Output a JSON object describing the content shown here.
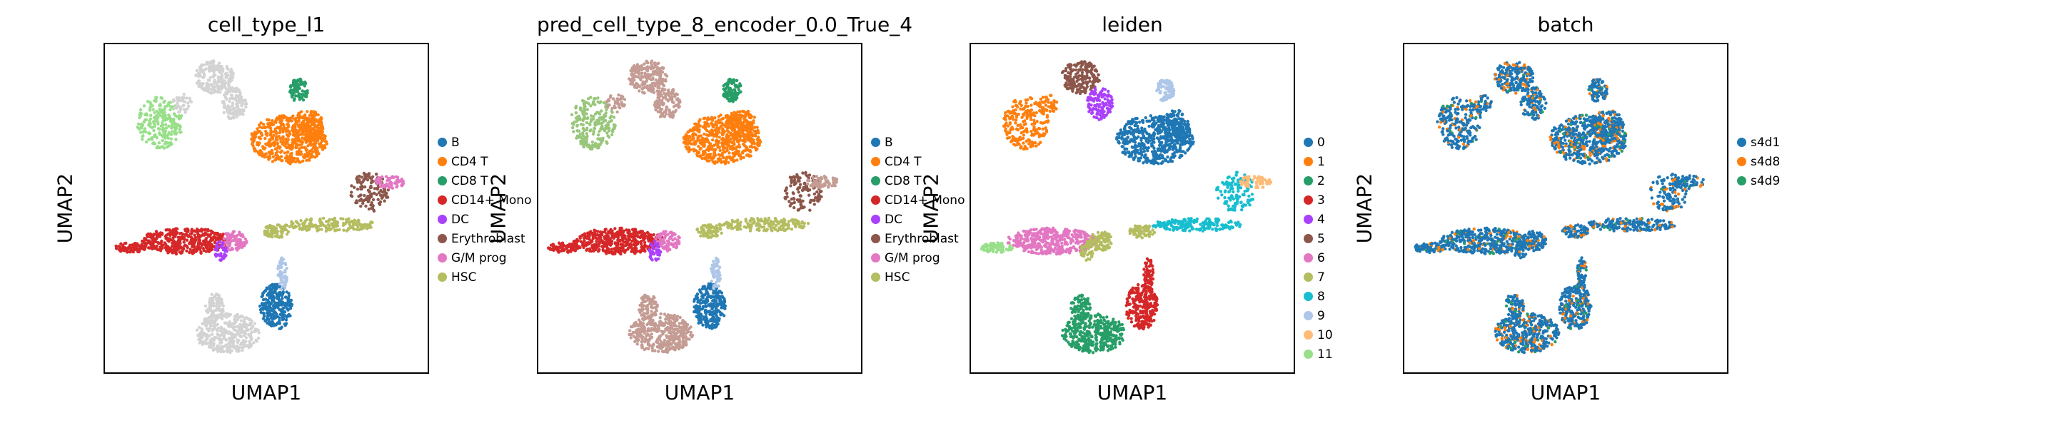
{
  "chart_data": [
    {
      "type": "scatter",
      "title": "cell_type_l1",
      "xlabel": "UMAP1",
      "ylabel": "UMAP2",
      "legend_placement": "right",
      "grid": false,
      "legend": [
        {
          "label": "B",
          "color": "#1f77b4"
        },
        {
          "label": "CD4 T",
          "color": "#ff7f0e"
        },
        {
          "label": "CD8 T",
          "color": "#279e68"
        },
        {
          "label": "CD14+ Mono",
          "color": "#d62728"
        },
        {
          "label": "DC",
          "color": "#aa40fc"
        },
        {
          "label": "Erythroblast",
          "color": "#8c564b"
        },
        {
          "label": "G/M prog",
          "color": "#e377c2"
        },
        {
          "label": "HSC",
          "color": "#b5bd61"
        }
      ]
    },
    {
      "type": "scatter",
      "title": "pred_cell_type_8_encoder_0.0_True_4",
      "xlabel": "UMAP1",
      "ylabel": "UMAP2",
      "legend_placement": "right",
      "grid": false,
      "legend": [
        {
          "label": "B",
          "color": "#1f77b4"
        },
        {
          "label": "CD4 T",
          "color": "#ff7f0e"
        },
        {
          "label": "CD8 T",
          "color": "#279e68"
        },
        {
          "label": "CD14+ Mono",
          "color": "#d62728"
        },
        {
          "label": "DC",
          "color": "#aa40fc"
        },
        {
          "label": "Erythroblast",
          "color": "#8c564b"
        },
        {
          "label": "G/M prog",
          "color": "#e377c2"
        },
        {
          "label": "HSC",
          "color": "#b5bd61"
        }
      ]
    },
    {
      "type": "scatter",
      "title": "leiden",
      "xlabel": "UMAP1",
      "ylabel": "UMAP2",
      "legend_placement": "right",
      "grid": false,
      "legend": [
        {
          "label": "0",
          "color": "#1f77b4"
        },
        {
          "label": "1",
          "color": "#ff7f0e"
        },
        {
          "label": "2",
          "color": "#279e68"
        },
        {
          "label": "3",
          "color": "#d62728"
        },
        {
          "label": "4",
          "color": "#aa40fc"
        },
        {
          "label": "5",
          "color": "#8c564b"
        },
        {
          "label": "6",
          "color": "#e377c2"
        },
        {
          "label": "7",
          "color": "#b5bd61"
        },
        {
          "label": "8",
          "color": "#17becf"
        },
        {
          "label": "9",
          "color": "#aec7e8"
        },
        {
          "label": "10",
          "color": "#ffbb78"
        },
        {
          "label": "11",
          "color": "#98df8a"
        }
      ]
    },
    {
      "type": "scatter",
      "title": "batch",
      "xlabel": "UMAP1",
      "ylabel": "UMAP2",
      "legend_placement": "right",
      "grid": false,
      "legend": [
        {
          "label": "s4d1",
          "color": "#1f77b4"
        },
        {
          "label": "s4d8",
          "color": "#ff7f0e"
        },
        {
          "label": "s4d9",
          "color": "#279e68"
        }
      ]
    }
  ]
}
